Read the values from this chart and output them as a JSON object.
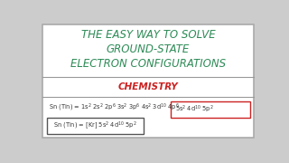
{
  "bg_color": "#ffffff",
  "outer_border_color": "#aaaaaa",
  "title_line1": "THE EASY WAY TO SOLVE",
  "title_line2": "GROUND-STATE",
  "title_line3": "ELECTRON CONFIGURATIONS",
  "title_color": "#2e8b57",
  "subtitle": "CHEMISTRY",
  "subtitle_color": "#cc2222",
  "config1": "Sn (Tin) = 1s$^{2}$ 2s$^{2}$ 2p$^{6}$ 3s$^{2}$ 3p$^{6}$ 4s$^{2}$ 3d$^{10}$ 4p$^{6}$",
  "config1_boxed": "5s$^{2}$ 4d$^{10}$ 5p$^{2}$",
  "config2": "Sn (Tin) = [Kr] 5s$^{2}$ 4d$^{10}$ 5p$^{2}$",
  "text_color": "#333333",
  "box_border_color": "#cc2222",
  "box2_border_color": "#555555",
  "divider_color": "#999999"
}
